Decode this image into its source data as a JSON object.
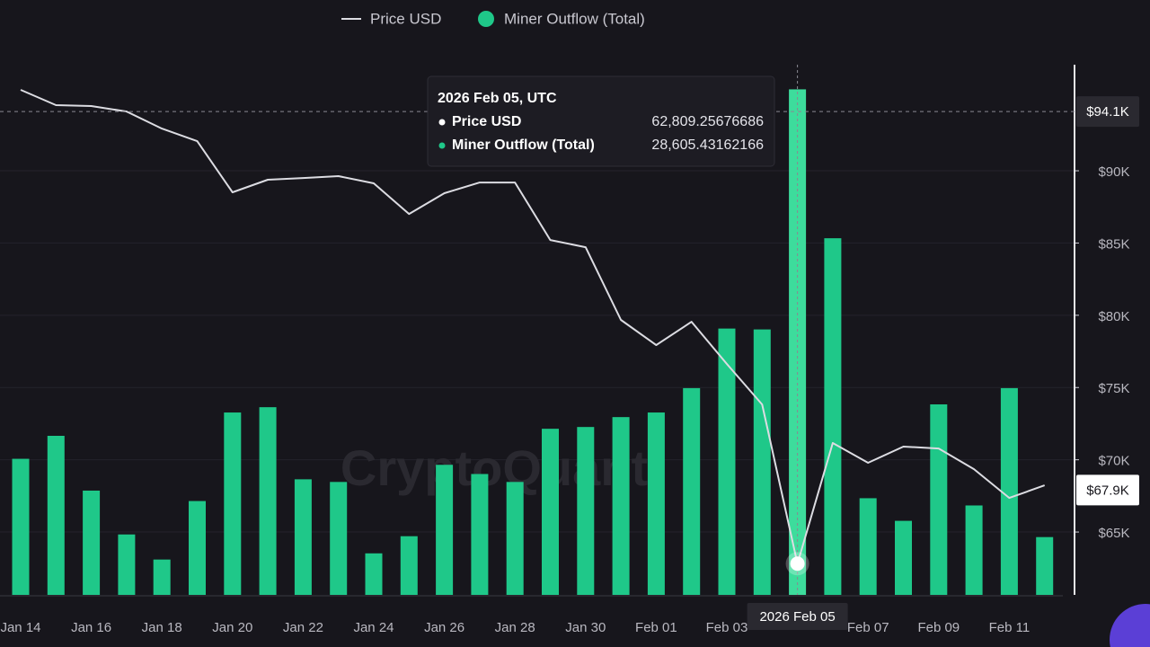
{
  "chart_data": {
    "type": "combo",
    "watermark": "CryptoQuant",
    "categories": [
      "Jan 14",
      null,
      "Jan 16",
      null,
      "Jan 18",
      null,
      "Jan 20",
      null,
      "Jan 22",
      null,
      "Jan 24",
      null,
      "Jan 26",
      null,
      "Jan 28",
      null,
      "Jan 30",
      null,
      "Feb 01",
      null,
      "Feb 03",
      null,
      null,
      null,
      "Feb 07",
      null,
      "Feb 09",
      null,
      "Feb 11",
      null
    ],
    "series": [
      {
        "name": "Price USD",
        "type": "line",
        "axis": "y",
        "color": "#dcdce2",
        "values": [
          95600,
          94540,
          94480,
          94100,
          92920,
          92050,
          88510,
          89380,
          89500,
          89630,
          89130,
          87010,
          88450,
          89190,
          89190,
          85210,
          84710,
          79680,
          77940,
          79550,
          76630,
          73830,
          62809.25676686,
          71160,
          69790,
          70910,
          70780,
          69350,
          67360,
          68230
        ]
      },
      {
        "name": "Miner Outflow (Total)",
        "type": "bar",
        "axis": "y2",
        "color": "#1fc889",
        "values": [
          7700,
          9000,
          5900,
          3420,
          2000,
          5310,
          10320,
          10620,
          6540,
          6390,
          2350,
          3320,
          7360,
          6840,
          6390,
          9400,
          9500,
          10060,
          10320,
          11700,
          15070,
          15020,
          28605.43162166,
          20180,
          5470,
          4190,
          10780,
          5060,
          11700,
          3270
        ]
      }
    ],
    "ylim": [
      60650,
      97340
    ],
    "yticks": [
      {
        "value": 65000,
        "label": "$65K"
      },
      {
        "value": 70000,
        "label": "$70K"
      },
      {
        "value": 75000,
        "label": "$75K"
      },
      {
        "value": 80000,
        "label": "$80K"
      },
      {
        "value": 85000,
        "label": "$85K"
      },
      {
        "value": 90000,
        "label": "$90K"
      }
    ],
    "y2lim": [
      0,
      30000
    ],
    "grid": true,
    "price_markers": [
      {
        "value": 94100,
        "label": "$94.1K"
      },
      {
        "value": 67900,
        "label": "$67.9K"
      }
    ],
    "hover": {
      "index": 22,
      "axis_label": "2026 Feb 05",
      "tooltip_title": "2026 Feb 05, UTC",
      "tooltip_values": [
        "62,809.25676686",
        "28,605.43162166"
      ]
    }
  }
}
